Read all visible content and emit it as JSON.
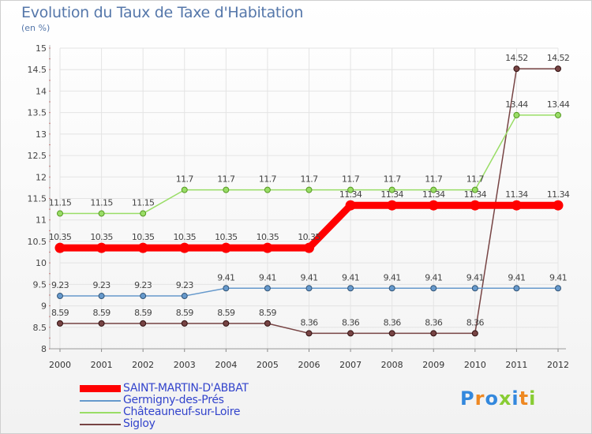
{
  "chart_data": {
    "type": "line",
    "title": "Evolution du Taux de Taxe d'Habitation",
    "ylabel": "(en %)",
    "xlabel": "",
    "ylim": [
      8,
      15
    ],
    "yticks": [
      "8",
      "8.5",
      "9",
      "9.5",
      "10",
      "10.5",
      "11",
      "11.5",
      "12",
      "12.5",
      "13",
      "13.5",
      "14",
      "14.5",
      "15"
    ],
    "categories": [
      "2000",
      "2001",
      "2002",
      "2003",
      "2004",
      "2005",
      "2006",
      "2007",
      "2008",
      "2009",
      "2010",
      "2011",
      "2012"
    ],
    "grid": true,
    "legend": "bottom-left",
    "series": [
      {
        "name": "SAINT-MARTIN-D'ABBAT",
        "color": "#ff0000",
        "values": [
          10.35,
          10.35,
          10.35,
          10.35,
          10.35,
          10.35,
          10.35,
          11.34,
          11.34,
          11.34,
          11.34,
          11.34,
          11.34
        ],
        "labels": [
          "10.35",
          "10.35",
          "10.35",
          "10.35",
          "10.35",
          "10.35",
          "10.35",
          "11.34",
          "11.34",
          "11.34",
          "11.34",
          "11.34",
          "11.34"
        ]
      },
      {
        "name": "Germigny-des-Prés",
        "color": "#6699cc",
        "values": [
          9.23,
          9.23,
          9.23,
          9.23,
          9.41,
          9.41,
          9.41,
          9.41,
          9.41,
          9.41,
          9.41,
          9.41,
          9.41
        ],
        "labels": [
          "9.23",
          "9.23",
          "9.23",
          "9.23",
          "9.41",
          "9.41",
          "9.41",
          "9.41",
          "9.41",
          "9.41",
          "9.41",
          "9.41",
          "9.41"
        ]
      },
      {
        "name": "Châteauneuf-sur-Loire",
        "color": "#99dd66",
        "values": [
          11.15,
          11.15,
          11.15,
          11.7,
          11.7,
          11.7,
          11.7,
          11.7,
          11.7,
          11.7,
          11.7,
          13.44,
          13.44
        ],
        "labels": [
          "11.15",
          "11.15",
          "11.15",
          "11.7",
          "11.7",
          "11.7",
          "11.7",
          "11.7",
          "11.7",
          "11.7",
          "11.7",
          "13.44",
          "13.44"
        ]
      },
      {
        "name": "Sigloy",
        "color": "#774444",
        "values": [
          8.59,
          8.59,
          8.59,
          8.59,
          8.59,
          8.59,
          8.36,
          8.36,
          8.36,
          8.36,
          8.36,
          14.52,
          14.52
        ],
        "labels": [
          "8.59",
          "8.59",
          "8.59",
          "8.59",
          "8.59",
          "8.59",
          "8.36",
          "8.36",
          "8.36",
          "8.36",
          "8.36",
          "14.52",
          "14.52"
        ]
      }
    ]
  },
  "legend_items": [
    {
      "label": "SAINT-MARTIN-D'ABBAT",
      "color": "#ff0000"
    },
    {
      "label": "Germigny-des-Prés",
      "color": "#6699cc"
    },
    {
      "label": "Châteauneuf-sur-Loire",
      "color": "#99dd66"
    },
    {
      "label": "Sigloy",
      "color": "#774444"
    }
  ],
  "logo": {
    "text": "Proxiti",
    "colors": [
      "#3388dd",
      "#ee8822",
      "#3388dd",
      "#88cc33",
      "#3388dd",
      "#ee8822",
      "#88cc33"
    ]
  }
}
